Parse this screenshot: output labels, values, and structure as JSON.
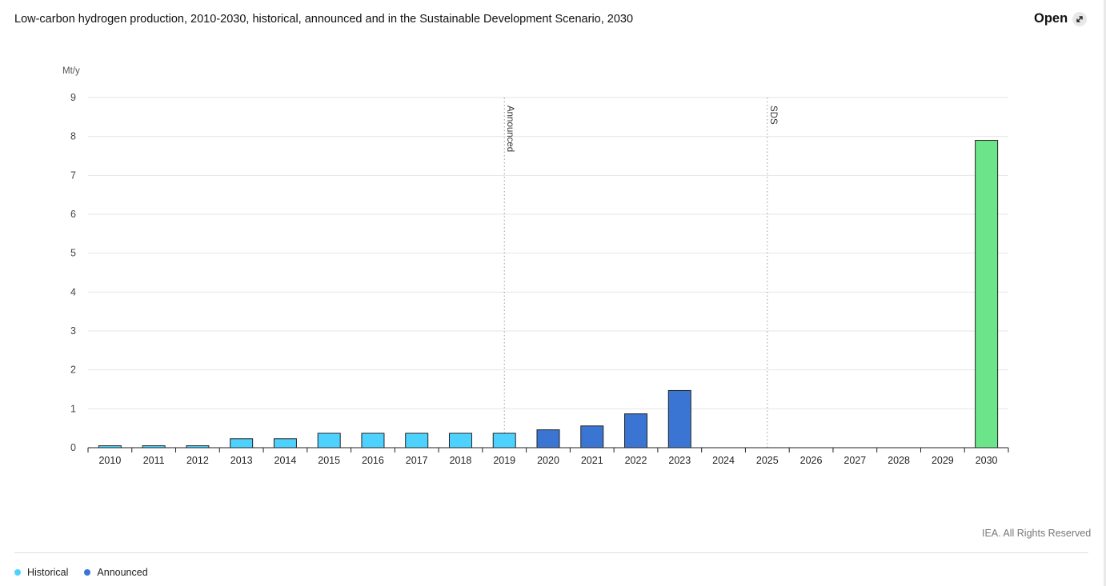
{
  "header": {
    "title": "Low-carbon hydrogen production, 2010-2030, historical, announced and in the Sustainable Development Scenario, 2030",
    "open_label": "Open",
    "open_icon": "expand-arrow-icon"
  },
  "footer": {
    "credit": "IEA. All Rights Reserved"
  },
  "legend": [
    {
      "label": "Historical",
      "color": "#4dd2ff"
    },
    {
      "label": "Announced",
      "color": "#3a75d3"
    }
  ],
  "chart_data": {
    "type": "bar",
    "ylabel": "Mt/y",
    "ylim": [
      0,
      9
    ],
    "yticks": [
      0,
      1,
      2,
      3,
      4,
      5,
      6,
      7,
      8,
      9
    ],
    "categories": [
      "2010",
      "2011",
      "2012",
      "2013",
      "2014",
      "2015",
      "2016",
      "2017",
      "2018",
      "2019",
      "2020",
      "2021",
      "2022",
      "2023",
      "2024",
      "2025",
      "2026",
      "2027",
      "2028",
      "2029",
      "2030"
    ],
    "series": [
      {
        "name": "Historical",
        "color": "#4dd2ff",
        "values": [
          0.05,
          0.05,
          0.05,
          0.23,
          0.23,
          0.37,
          0.37,
          0.37,
          0.37,
          0.37,
          null,
          null,
          null,
          null,
          null,
          null,
          null,
          null,
          null,
          null,
          null
        ]
      },
      {
        "name": "Announced",
        "color": "#3a75d3",
        "values": [
          null,
          null,
          null,
          null,
          null,
          null,
          null,
          null,
          null,
          null,
          0.46,
          0.56,
          0.87,
          1.47,
          null,
          null,
          null,
          null,
          null,
          null,
          null
        ]
      },
      {
        "color": "#6ce58a",
        "values": [
          null,
          null,
          null,
          null,
          null,
          null,
          null,
          null,
          null,
          null,
          null,
          null,
          null,
          null,
          null,
          null,
          null,
          null,
          null,
          null,
          7.9
        ]
      }
    ],
    "annotations": [
      {
        "text": "Announced",
        "x": "2019"
      },
      {
        "text": "SDS",
        "x": "2025"
      }
    ],
    "grid": true,
    "legend_position": "bottom-left"
  }
}
